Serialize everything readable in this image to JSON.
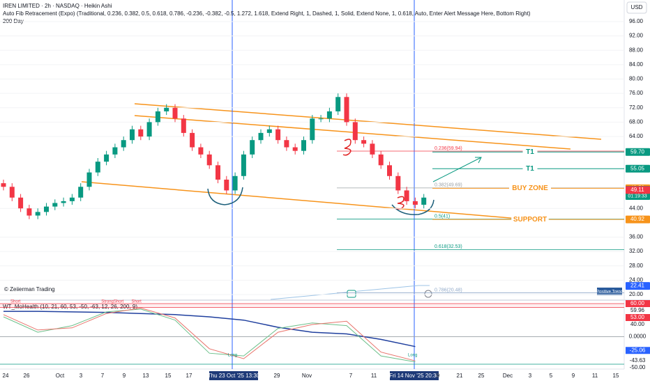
{
  "chart_data": {
    "type": "candlestick",
    "title": "IREN LIMITED · 2h · NASDAQ · Heikin Ashi",
    "subtitle": "Auto Fib Retracement (Expo) (Traditional, 0.236, 0.382, 0.5, 0.618, 0.786, -0.236, -0.382, -0.5, 1.272, 1.618, Extend Right, 1, Dashed, 1, Solid, Extend None, 1, 0.618, Auto, Enter Alert Message Here, Bottom Right)",
    "study": "200 Day",
    "currency": "USD",
    "watermark": "© Zeiierman Trading",
    "trend_label": "Positive Trend",
    "up_color": "#089981",
    "down_color": "#f23645",
    "open": [
      51,
      50,
      47,
      44,
      42,
      43,
      44.5,
      45.5,
      46,
      47,
      50,
      54,
      57,
      59,
      61,
      63,
      66,
      64,
      68,
      71,
      72,
      69,
      65,
      61,
      59,
      56,
      52,
      49,
      53,
      59,
      63,
      65,
      66,
      63,
      61,
      60,
      63,
      69,
      69,
      71,
      75,
      68,
      63,
      62,
      59,
      56,
      53,
      49,
      46,
      45
    ],
    "high": [
      52,
      51,
      48,
      45,
      44,
      45.5,
      46.5,
      47,
      48,
      51,
      55,
      58,
      60,
      62,
      64,
      67,
      67,
      69,
      72,
      73,
      73,
      70,
      66,
      62,
      60,
      57,
      53,
      54,
      60,
      64,
      66,
      67,
      67,
      64,
      62,
      64,
      70,
      70,
      72,
      76,
      76,
      69,
      64,
      63,
      60,
      57,
      54,
      50,
      47,
      48
    ],
    "low": [
      49,
      46,
      43,
      41,
      41,
      42,
      43.5,
      44.5,
      45,
      46,
      49,
      53,
      56,
      58,
      60,
      62,
      63,
      63,
      67,
      70,
      68,
      64,
      60,
      58,
      55,
      51,
      48,
      48,
      52,
      58,
      62,
      64,
      62,
      60,
      59,
      59,
      62,
      68,
      68,
      70,
      67,
      62,
      61,
      58,
      55,
      52,
      48,
      45,
      44,
      44
    ],
    "close": [
      50,
      47,
      44,
      42,
      43,
      44.5,
      45.5,
      46,
      47,
      50,
      54,
      57,
      59,
      61,
      63,
      66,
      64,
      68,
      71,
      72,
      69,
      65,
      61,
      59,
      56,
      52,
      49,
      53,
      59,
      63,
      65,
      66,
      63,
      61,
      60,
      63,
      69,
      69,
      71,
      75,
      68,
      63,
      62,
      59,
      56,
      53,
      49,
      46,
      45,
      47
    ],
    "ylim": [
      18.65,
      102
    ],
    "yticks": [
      {
        "value": 96,
        "label": "96.00"
      },
      {
        "value": 92,
        "label": "92.00"
      },
      {
        "value": 88,
        "label": "88.00"
      },
      {
        "value": 84,
        "label": "84.00"
      },
      {
        "value": 80,
        "label": "80.00"
      },
      {
        "value": 76,
        "label": "76.00"
      },
      {
        "value": 72,
        "label": "72.00"
      },
      {
        "value": 68,
        "label": "68.00"
      },
      {
        "value": 64,
        "label": "64.00"
      },
      {
        "value": 44,
        "label": "44.00"
      },
      {
        "value": 36,
        "label": "36.00"
      },
      {
        "value": 32,
        "label": "32.00"
      },
      {
        "value": 28,
        "label": "28.00"
      },
      {
        "value": 24,
        "label": "24.00"
      },
      {
        "value": 20,
        "label": "20.00"
      }
    ],
    "fib_levels": [
      {
        "value": 59.94,
        "label": "0.236(59.94)",
        "color": "#f23645"
      },
      {
        "value": 49.69,
        "label": "0.382(49.69)",
        "color": "#9aa0a6"
      },
      {
        "value": 41,
        "label": "0.5(41)",
        "color": "#089981"
      },
      {
        "value": 32.53,
        "label": "0.618(32.53)",
        "color": "#089981"
      },
      {
        "value": 20.48,
        "label": "0.786(20.48)",
        "color": "#8fa8c8"
      }
    ],
    "price_labels": [
      {
        "value": 59.7,
        "label": "59.70",
        "color": "#089981",
        "note": "T1"
      },
      {
        "value": 55.05,
        "label": "55.05",
        "color": "#089981",
        "note": "T1"
      },
      {
        "value": 49.59,
        "label": "49.59",
        "color": "#f7931a",
        "note": "BUY ZONE"
      },
      {
        "value": 49.18,
        "label": "49.18",
        "color": "#089981",
        "countdown": "01:19:33"
      },
      {
        "value": 49.11,
        "label": "49.11",
        "color": "#f23645"
      },
      {
        "value": 40.92,
        "label": "40.92",
        "color": "#f7931a",
        "note": "SUPPORT"
      },
      {
        "value": 22.41,
        "label": "22.41",
        "color": "#2962ff"
      }
    ],
    "x_labels": [
      "24",
      "26",
      "Oct",
      "3",
      "7",
      "9",
      "13",
      "15",
      "17",
      "Thu 23 Oct '25  13:30",
      "29",
      "Nov",
      "7",
      "11",
      "Fri 14 Nov '25  20:30",
      "9",
      "21",
      "25",
      "Dec",
      "3",
      "5",
      "9",
      "11",
      "15"
    ],
    "indicator": {
      "title": "WT_MoHealth (10, 21, 60, 53, -50, -63, 12, 26, 200, 9)",
      "ylim": [
        -58.9,
        65.06
      ],
      "x": [
        0,
        4,
        8,
        12,
        16,
        20,
        24,
        28,
        32,
        36,
        40,
        44,
        48
      ],
      "series": [
        {
          "color": "#1f3f9e",
          "values": [
            46,
            46,
            45,
            44,
            42,
            40,
            36,
            30,
            17,
            8,
            5,
            -5,
            -18
          ]
        },
        {
          "color": "#6cc08b",
          "values": [
            36,
            8,
            20,
            45,
            50,
            30,
            -30,
            -35,
            15,
            25,
            20,
            -35,
            -46
          ]
        },
        {
          "color": "#e8736b",
          "values": [
            40,
            12,
            16,
            42,
            52,
            34,
            -22,
            -40,
            8,
            22,
            28,
            -28,
            -44
          ]
        }
      ],
      "levels": [
        {
          "value": 60,
          "color": "#f23645"
        },
        {
          "value": 53,
          "color": "#f23645"
        },
        {
          "value": 0,
          "color": "#9aa0a6"
        },
        {
          "value": -50,
          "color": "#089981"
        }
      ],
      "right_labels": [
        {
          "value": 60,
          "label": "60.00",
          "color": "#f23645"
        },
        {
          "value": 59.96,
          "label": "59.96",
          "color": null
        },
        {
          "value": 53,
          "label": "53.00",
          "color": "#f23645"
        },
        {
          "value": 40,
          "label": "40.00",
          "color": null
        },
        {
          "value": 0,
          "label": "0.0000",
          "color": null
        },
        {
          "value": -25.06,
          "label": "-25.06",
          "color": "#2962ff"
        },
        {
          "value": -43.63,
          "label": "-43.63",
          "color": null
        },
        {
          "value": -50,
          "label": "-50.00",
          "color": null
        }
      ],
      "signals": [
        {
          "x": 1.4,
          "label": "Short",
          "color": "#f23645"
        },
        {
          "x": 12.7,
          "label": "StrongShort",
          "color": "#f23645"
        },
        {
          "x": 15.5,
          "label": "Short",
          "color": "#f23645"
        },
        {
          "x": 26.7,
          "label": "Long",
          "color": "#089981"
        },
        {
          "x": 47.7,
          "label": "Long",
          "color": "#089981"
        }
      ]
    }
  }
}
